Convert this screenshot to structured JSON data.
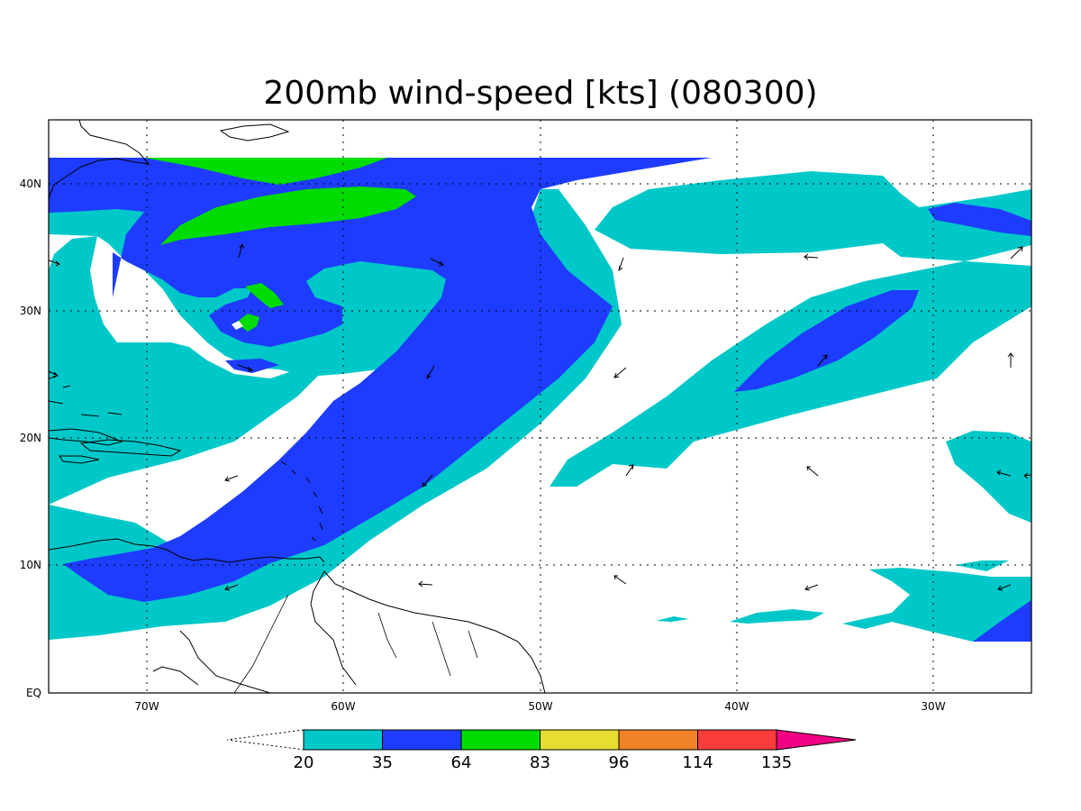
{
  "title": "200mb wind-speed [kts] (080300)",
  "axes": {
    "lon_ticks": [
      "70W",
      "60W",
      "50W",
      "40W",
      "30W"
    ],
    "lat_ticks": [
      "40N",
      "30N",
      "20N",
      "10N",
      "EQ"
    ],
    "lon_range": [
      "75W",
      "25W"
    ],
    "lat_range": [
      "EQ",
      "45N"
    ],
    "grid": "dotted"
  },
  "colorbar": {
    "levels": [
      "20",
      "35",
      "64",
      "83",
      "96",
      "114",
      "135"
    ],
    "colors": [
      "#00c8c8",
      "#1e3cff",
      "#00dc00",
      "#e6dc32",
      "#f08228",
      "#fa3c3c",
      "#f00082"
    ],
    "extend": "both"
  },
  "map": {
    "background_color": "#ffffff",
    "coastline_color": "#000000"
  }
}
